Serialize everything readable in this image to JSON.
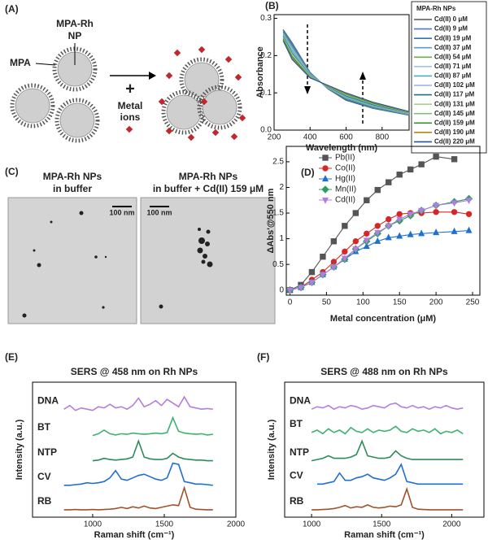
{
  "diagram": {
    "panel_label": "(A)",
    "np_label": [
      "MPA-Rh",
      "NP"
    ],
    "mpa_label": "MPA",
    "plus": "+",
    "metal_label": [
      "Metal",
      "ions"
    ]
  },
  "micrographs": {
    "panel_label": "(C)",
    "images": [
      {
        "title": [
          "MPA-Rh NPs",
          "in buffer"
        ],
        "scale_bar": "100 nm"
      },
      {
        "title": [
          "MPA-Rh NPs",
          "in buffer + Cd(II) 159 μM"
        ],
        "scale_bar": "100 nm"
      }
    ]
  },
  "chart_data": [
    {
      "type": "line",
      "panel_label": "(B)",
      "xlabel": "Wavelength (nm)",
      "ylabel": "Absorbance",
      "legend_title": "MPA-Rh NPs",
      "legend": "outside-right",
      "x": [
        250,
        300,
        400,
        500,
        600,
        750,
        950
      ],
      "xlim": [
        200,
        950
      ],
      "xticks": [
        200,
        400,
        600,
        800
      ],
      "ylim": [
        0,
        0.31
      ],
      "yticks": [
        {
          "value": 0,
          "label": "0.0"
        },
        0.1,
        0.2,
        0.3
      ],
      "series": [
        {
          "name": "Cd(II) 0 μM",
          "color": "#555555",
          "values": [
            0.27,
            0.235,
            0.155,
            0.11,
            0.08,
            0.058,
            0.04
          ]
        },
        {
          "name": "Cd(II) 9 μM",
          "color": "#4a7ebb",
          "values": [
            0.268,
            0.232,
            0.154,
            0.111,
            0.082,
            0.059,
            0.041
          ]
        },
        {
          "name": "Cd(II) 19 μM",
          "color": "#2e75b6",
          "values": [
            0.265,
            0.228,
            0.153,
            0.112,
            0.083,
            0.061,
            0.042
          ]
        },
        {
          "name": "Cd(II) 37 μM",
          "color": "#5b9bd5",
          "values": [
            0.263,
            0.225,
            0.152,
            0.112,
            0.085,
            0.062,
            0.042
          ]
        },
        {
          "name": "Cd(II) 54 μM",
          "color": "#70ad47",
          "values": [
            0.261,
            0.221,
            0.15,
            0.113,
            0.086,
            0.063,
            0.043
          ]
        },
        {
          "name": "Cd(II) 71 μM",
          "color": "#9dc3e6",
          "values": [
            0.258,
            0.218,
            0.149,
            0.114,
            0.088,
            0.065,
            0.044
          ]
        },
        {
          "name": "Cd(II) 87 μM",
          "color": "#4bacc6",
          "values": [
            0.256,
            0.214,
            0.148,
            0.115,
            0.089,
            0.066,
            0.045
          ]
        },
        {
          "name": "Cd(II) 102 μM",
          "color": "#8eb4e3",
          "values": [
            0.254,
            0.211,
            0.147,
            0.115,
            0.091,
            0.067,
            0.045
          ]
        },
        {
          "name": "Cd(II) 117 μM",
          "color": "#1f6f8b",
          "values": [
            0.252,
            0.207,
            0.146,
            0.116,
            0.092,
            0.068,
            0.046
          ]
        },
        {
          "name": "Cd(II) 131 μM",
          "color": "#a9d18e",
          "values": [
            0.249,
            0.204,
            0.145,
            0.117,
            0.094,
            0.07,
            0.047
          ]
        },
        {
          "name": "Cd(II) 145 μM",
          "color": "#7fbf7f",
          "values": [
            0.247,
            0.2,
            0.143,
            0.118,
            0.095,
            0.071,
            0.048
          ]
        },
        {
          "name": "Cd(II) 159 μM",
          "color": "#3a8c3a",
          "values": [
            0.245,
            0.197,
            0.142,
            0.118,
            0.097,
            0.072,
            0.048
          ]
        },
        {
          "name": "Cd(II) 190 μM",
          "color": "#b8860b",
          "values": [
            0.242,
            0.193,
            0.141,
            0.119,
            0.098,
            0.074,
            0.049
          ]
        },
        {
          "name": "Cd(II) 220 μM",
          "color": "#2255aa",
          "values": [
            0.24,
            0.19,
            0.14,
            0.12,
            0.1,
            0.075,
            0.05
          ]
        }
      ]
    },
    {
      "type": "line",
      "panel_label": "(D)",
      "xlabel": "Metal concentration (μM)",
      "ylabel": "ΔAbs'@550 nm",
      "legend": "upper-left",
      "x": [
        0,
        15,
        30,
        45,
        60,
        75,
        90,
        105,
        120,
        135,
        150,
        165,
        180,
        200,
        225,
        245
      ],
      "xlim": [
        -5,
        260
      ],
      "xticks": [
        0,
        50,
        100,
        150,
        200,
        250
      ],
      "ylim": [
        -0.1,
        2.8
      ],
      "yticks": [
        0,
        0.5,
        1,
        1.5,
        2,
        2.5
      ],
      "series": [
        {
          "name": "Pb(II)",
          "color": "#555555",
          "marker": "square",
          "values": [
            0,
            0.1,
            0.35,
            0.65,
            0.95,
            1.25,
            1.5,
            1.75,
            1.95,
            2.1,
            2.25,
            2.35,
            2.45,
            2.6,
            2.55,
            null
          ]
        },
        {
          "name": "Co(II)",
          "color": "#d62728",
          "marker": "circle",
          "values": [
            0,
            0.05,
            0.2,
            0.35,
            0.55,
            0.75,
            0.95,
            1.1,
            1.25,
            1.38,
            1.48,
            1.5,
            1.5,
            1.52,
            1.52,
            1.48
          ]
        },
        {
          "name": "Hg(II)",
          "color": "#1f6fd1",
          "marker": "triangle-up",
          "values": [
            0,
            0.05,
            0.15,
            0.3,
            0.45,
            0.6,
            0.75,
            0.85,
            0.95,
            1.02,
            1.05,
            1.08,
            1.1,
            1.12,
            1.14,
            1.16
          ]
        },
        {
          "name": "Mn(II)",
          "color": "#2ca05a",
          "marker": "diamond",
          "values": [
            0,
            0.05,
            0.15,
            0.3,
            0.45,
            0.6,
            0.8,
            0.95,
            1.1,
            1.25,
            1.35,
            1.45,
            1.55,
            1.65,
            1.72,
            1.78
          ]
        },
        {
          "name": "Cd(II)",
          "color": "#b07ee0",
          "marker": "triangle-down",
          "values": [
            0,
            0.05,
            0.15,
            0.3,
            0.45,
            0.62,
            0.8,
            0.97,
            1.12,
            1.25,
            1.38,
            1.48,
            1.55,
            1.65,
            1.7,
            1.75
          ]
        }
      ]
    },
    {
      "type": "line",
      "panel_label": "(E)",
      "title": "SERS @ 458 nm on Rh NPs",
      "xlabel": "Raman shift (cm⁻¹)",
      "ylabel": "Intensity (a.u.)",
      "legend": "trace-labels",
      "x": [
        800,
        840,
        880,
        920,
        960,
        1000,
        1040,
        1080,
        1120,
        1160,
        1200,
        1240,
        1280,
        1320,
        1360,
        1400,
        1440,
        1480,
        1520,
        1560,
        1600,
        1640,
        1680,
        1720,
        1760,
        1800,
        1840
      ],
      "xlim": [
        580,
        2000
      ],
      "xticks": [
        1000,
        1500,
        2000
      ],
      "ylim": [
        -0.5,
        10.5
      ],
      "series": [
        {
          "name": "DNA",
          "color": "#b57edc",
          "values": [
            8.3,
            8.6,
            8.2,
            8.4,
            8.3,
            8.2,
            8.5,
            8.4,
            8.7,
            8.4,
            8.5,
            8.3,
            8.6,
            9.2,
            8.5,
            8.7,
            9.0,
            8.6,
            9.1,
            8.8,
            8.5,
            9.3,
            8.5,
            8.4,
            8.3,
            8.35,
            8.3
          ]
        },
        {
          "name": "BT",
          "color": "#3cb371",
          "values": [
            null,
            null,
            null,
            null,
            null,
            6.15,
            6.3,
            6.6,
            6.3,
            6.2,
            6.3,
            6.25,
            6.35,
            6.3,
            6.25,
            6.3,
            6.35,
            6.3,
            6.4,
            7.6,
            6.5,
            6.35,
            6.3,
            6.25,
            6.3,
            6.2,
            6.25
          ]
        },
        {
          "name": "NTP",
          "color": "#2e8b57",
          "values": [
            null,
            null,
            null,
            null,
            null,
            4.1,
            4.15,
            4.3,
            4.2,
            4.15,
            4.2,
            4.25,
            4.4,
            5.7,
            4.4,
            4.25,
            4.2,
            4.2,
            4.3,
            4.7,
            4.4,
            4.25,
            4.2,
            4.15,
            4.15,
            4.1,
            4.1
          ]
        },
        {
          "name": "CV",
          "color": "#1f6fd1",
          "values": [
            2.1,
            2.1,
            2.15,
            2.2,
            2.3,
            2.25,
            2.3,
            2.4,
            2.7,
            3.3,
            2.6,
            2.5,
            2.7,
            2.9,
            3.0,
            2.8,
            2.6,
            2.5,
            2.7,
            3.9,
            3.8,
            2.4,
            2.3,
            2.2,
            2.2,
            2.15,
            2.1
          ]
        },
        {
          "name": "RB",
          "color": "#a0522d",
          "values": [
            0.1,
            0.1,
            0.12,
            0.1,
            0.1,
            0.12,
            0.1,
            0.12,
            0.15,
            0.2,
            0.3,
            0.2,
            0.35,
            0.25,
            0.4,
            0.25,
            0.2,
            0.3,
            0.4,
            0.5,
            0.45,
            1.9,
            0.3,
            0.15,
            0.12,
            0.1,
            0.1
          ]
        }
      ]
    },
    {
      "type": "line",
      "panel_label": "(F)",
      "title": "SERS @ 488 nm on Rh NPs",
      "xlabel": "Raman shift (cm⁻¹)",
      "ylabel": "Intensity (a.u.)",
      "legend": "trace-labels",
      "x": [
        1000,
        1040,
        1080,
        1120,
        1160,
        1200,
        1240,
        1280,
        1320,
        1360,
        1400,
        1440,
        1480,
        1520,
        1560,
        1600,
        1640,
        1680,
        1720,
        1760,
        1800,
        1840,
        1880,
        1920,
        1960,
        2000,
        2040,
        2080
      ],
      "xlim": [
        808,
        2230
      ],
      "xticks": [
        1000,
        1500,
        2000
      ],
      "ylim": [
        -0.5,
        10.5
      ],
      "series": [
        {
          "name": "DNA",
          "color": "#b57edc",
          "values": [
            8.3,
            8.5,
            8.4,
            8.6,
            8.3,
            8.5,
            8.4,
            8.6,
            8.5,
            8.3,
            8.4,
            8.6,
            8.5,
            8.4,
            8.7,
            8.8,
            8.5,
            8.4,
            8.6,
            8.4,
            8.5,
            8.3,
            8.5,
            8.4,
            8.6,
            8.4,
            8.3,
            8.4
          ]
        },
        {
          "name": "BT",
          "color": "#3cb371",
          "values": [
            6.4,
            6.6,
            6.3,
            6.7,
            6.4,
            6.6,
            6.3,
            6.8,
            6.5,
            6.4,
            6.7,
            6.4,
            6.6,
            6.5,
            6.6,
            6.9,
            6.5,
            6.4,
            6.7,
            6.5,
            6.6,
            6.4,
            6.7,
            6.3,
            6.5,
            6.4,
            6.6,
            6.3
          ]
        },
        {
          "name": "NTP",
          "color": "#2e8b57",
          "values": [
            4.1,
            4.2,
            4.3,
            4.5,
            4.3,
            4.3,
            4.3,
            4.4,
            4.6,
            5.7,
            4.5,
            4.4,
            4.3,
            4.3,
            4.4,
            4.9,
            4.5,
            4.3,
            4.2,
            4.2,
            4.2,
            4.2,
            4.2,
            4.2,
            4.2,
            4.2,
            4.2,
            4.2
          ]
        },
        {
          "name": "CV",
          "color": "#1f6fd1",
          "values": [
            null,
            2.2,
            2.2,
            2.3,
            2.4,
            3.1,
            2.5,
            2.5,
            2.7,
            2.8,
            3.0,
            2.7,
            2.6,
            2.5,
            2.7,
            3.0,
            3.8,
            2.4,
            2.3,
            2.2,
            2.2,
            2.2,
            2.2,
            2.2,
            2.2,
            2.2,
            2.2,
            2.2
          ]
        },
        {
          "name": "RB",
          "color": "#a0522d",
          "values": [
            0.1,
            0.1,
            0.12,
            0.15,
            0.2,
            0.3,
            0.45,
            0.25,
            0.35,
            0.3,
            0.5,
            0.3,
            0.25,
            0.3,
            0.4,
            0.35,
            0.5,
            1.8,
            0.3,
            0.15,
            0.12,
            0.1,
            0.1,
            0.1,
            0.1,
            0.1,
            0.1,
            0.1
          ]
        }
      ]
    }
  ]
}
